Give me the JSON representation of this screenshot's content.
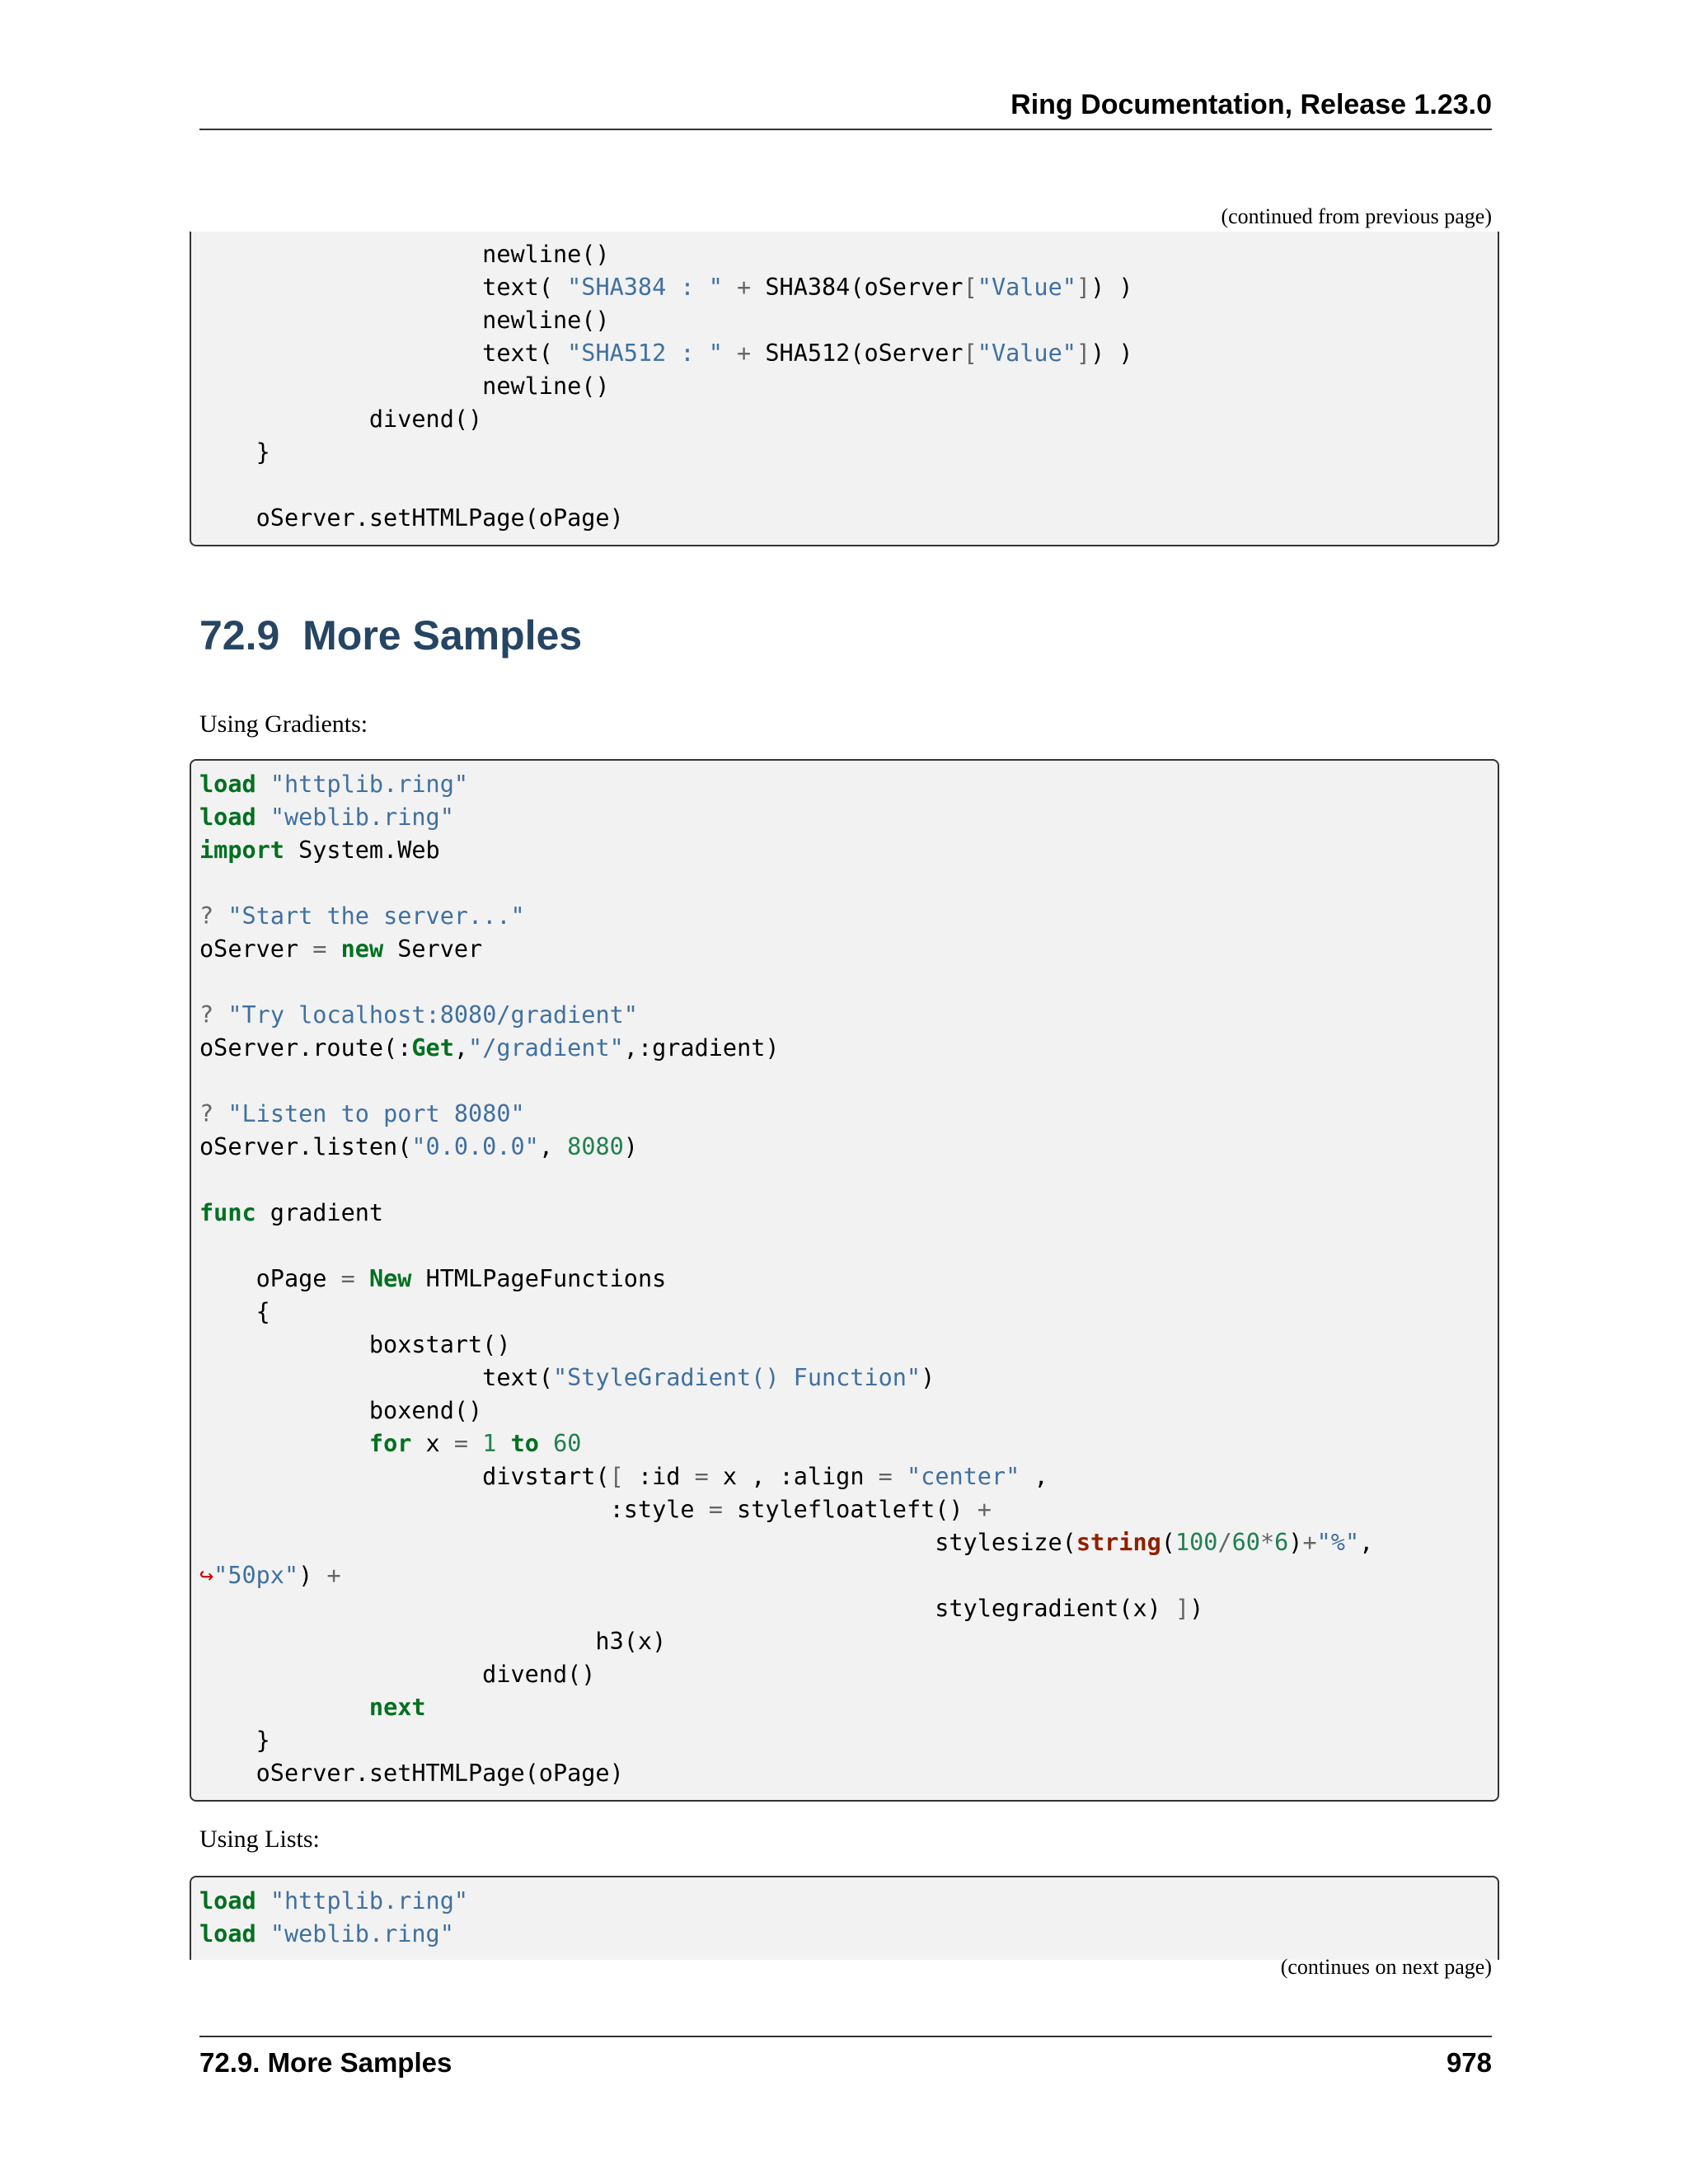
{
  "header": {
    "title": "Ring Documentation, Release 1.23.0"
  },
  "continued_from": "(continued from previous page)",
  "continues_on": "(continues on next page)",
  "section": {
    "number": "72.9",
    "title": "More Samples"
  },
  "para_gradients": "Using Gradients:",
  "para_lists": "Using Lists:",
  "footer": {
    "section": "72.9.  More Samples",
    "page": "978"
  },
  "colors": {
    "keyword": "#007020",
    "string": "#4070a0",
    "number": "#208050",
    "heading": "#264563",
    "code_bg": "#f2f2f2"
  },
  "code_blocks": [
    [
      [
        [
          "t",
          "                    newline()"
        ]
      ],
      [
        [
          "t",
          "                    text( "
        ],
        [
          "s",
          "\"SHA384 : \""
        ],
        [
          "t",
          " "
        ],
        [
          "o",
          "+"
        ],
        [
          "t",
          " SHA384(oServer"
        ],
        [
          "o",
          "["
        ],
        [
          "s",
          "\"Value\""
        ],
        [
          "o",
          "]"
        ],
        [
          "t",
          ") )"
        ]
      ],
      [
        [
          "t",
          "                    newline()"
        ]
      ],
      [
        [
          "t",
          "                    text( "
        ],
        [
          "s",
          "\"SHA512 : \""
        ],
        [
          "t",
          " "
        ],
        [
          "o",
          "+"
        ],
        [
          "t",
          " SHA512(oServer"
        ],
        [
          "o",
          "["
        ],
        [
          "s",
          "\"Value\""
        ],
        [
          "o",
          "]"
        ],
        [
          "t",
          ") )"
        ]
      ],
      [
        [
          "t",
          "                    newline()"
        ]
      ],
      [
        [
          "t",
          "            divend()"
        ]
      ],
      [
        [
          "t",
          "    }"
        ]
      ],
      [
        [
          "t",
          ""
        ]
      ],
      [
        [
          "t",
          "    oServer.setHTMLPage(oPage)"
        ]
      ]
    ],
    [
      [
        [
          "k",
          "load"
        ],
        [
          "t",
          " "
        ],
        [
          "s",
          "\"httplib.ring\""
        ]
      ],
      [
        [
          "k",
          "load"
        ],
        [
          "t",
          " "
        ],
        [
          "s",
          "\"weblib.ring\""
        ]
      ],
      [
        [
          "k",
          "import"
        ],
        [
          "t",
          " System.Web"
        ]
      ],
      [
        [
          "t",
          ""
        ]
      ],
      [
        [
          "o",
          "?"
        ],
        [
          "t",
          " "
        ],
        [
          "s",
          "\"Start the server...\""
        ]
      ],
      [
        [
          "t",
          "oServer "
        ],
        [
          "o",
          "="
        ],
        [
          "t",
          " "
        ],
        [
          "k",
          "new"
        ],
        [
          "t",
          " Server"
        ]
      ],
      [
        [
          "t",
          ""
        ]
      ],
      [
        [
          "o",
          "?"
        ],
        [
          "t",
          " "
        ],
        [
          "s",
          "\"Try localhost:8080/gradient\""
        ]
      ],
      [
        [
          "t",
          "oServer.route(:"
        ],
        [
          "k",
          "Get"
        ],
        [
          "t",
          ","
        ],
        [
          "s",
          "\"/gradient\""
        ],
        [
          "t",
          ",:gradient)"
        ]
      ],
      [
        [
          "t",
          ""
        ]
      ],
      [
        [
          "o",
          "?"
        ],
        [
          "t",
          " "
        ],
        [
          "s",
          "\"Listen to port 8080\""
        ]
      ],
      [
        [
          "t",
          "oServer.listen("
        ],
        [
          "s",
          "\"0.0.0.0\""
        ],
        [
          "t",
          ", "
        ],
        [
          "n",
          "8080"
        ],
        [
          "t",
          ")"
        ]
      ],
      [
        [
          "t",
          ""
        ]
      ],
      [
        [
          "k",
          "func"
        ],
        [
          "t",
          " gradient"
        ]
      ],
      [
        [
          "t",
          ""
        ]
      ],
      [
        [
          "t",
          "    oPage "
        ],
        [
          "o",
          "="
        ],
        [
          "t",
          " "
        ],
        [
          "k",
          "New"
        ],
        [
          "t",
          " HTMLPageFunctions"
        ]
      ],
      [
        [
          "t",
          "    {"
        ]
      ],
      [
        [
          "t",
          "            boxstart()"
        ]
      ],
      [
        [
          "t",
          "                    text("
        ],
        [
          "s",
          "\"StyleGradient() Function\""
        ],
        [
          "t",
          ")"
        ]
      ],
      [
        [
          "t",
          "            boxend()"
        ]
      ],
      [
        [
          "t",
          "            "
        ],
        [
          "k",
          "for"
        ],
        [
          "t",
          " x "
        ],
        [
          "o",
          "="
        ],
        [
          "t",
          " "
        ],
        [
          "n",
          "1"
        ],
        [
          "t",
          " "
        ],
        [
          "k",
          "to"
        ],
        [
          "t",
          " "
        ],
        [
          "n",
          "60"
        ]
      ],
      [
        [
          "t",
          "                    divstart("
        ],
        [
          "o",
          "["
        ],
        [
          "t",
          " :id "
        ],
        [
          "o",
          "="
        ],
        [
          "t",
          " x , :align "
        ],
        [
          "o",
          "="
        ],
        [
          "t",
          " "
        ],
        [
          "s",
          "\"center\""
        ],
        [
          "t",
          " ,"
        ]
      ],
      [
        [
          "t",
          "                             :style "
        ],
        [
          "o",
          "="
        ],
        [
          "t",
          " stylefloatleft() "
        ],
        [
          "o",
          "+"
        ]
      ],
      [
        [
          "t",
          "                                                    stylesize("
        ],
        [
          "b",
          "string"
        ],
        [
          "t",
          "("
        ],
        [
          "n",
          "100"
        ],
        [
          "o",
          "/"
        ],
        [
          "n",
          "60"
        ],
        [
          "o",
          "*"
        ],
        [
          "n",
          "6"
        ],
        [
          "t",
          ")"
        ],
        [
          "o",
          "+"
        ],
        [
          "s",
          "\"%\""
        ],
        [
          "t",
          ","
        ]
      ],
      [
        [
          "w",
          "↪"
        ],
        [
          "s",
          "\"50px\""
        ],
        [
          "t",
          ") "
        ],
        [
          "o",
          "+"
        ]
      ],
      [
        [
          "t",
          "                                                    stylegradient(x) "
        ],
        [
          "o",
          "]"
        ],
        [
          "t",
          ")"
        ]
      ],
      [
        [
          "t",
          "                            h3(x)"
        ]
      ],
      [
        [
          "t",
          "                    divend()"
        ]
      ],
      [
        [
          "t",
          "            "
        ],
        [
          "k",
          "next"
        ]
      ],
      [
        [
          "t",
          "    }"
        ]
      ],
      [
        [
          "t",
          "    oServer.setHTMLPage(oPage)"
        ]
      ]
    ],
    [
      [
        [
          "k",
          "load"
        ],
        [
          "t",
          " "
        ],
        [
          "s",
          "\"httplib.ring\""
        ]
      ],
      [
        [
          "k",
          "load"
        ],
        [
          "t",
          " "
        ],
        [
          "s",
          "\"weblib.ring\""
        ]
      ]
    ]
  ]
}
